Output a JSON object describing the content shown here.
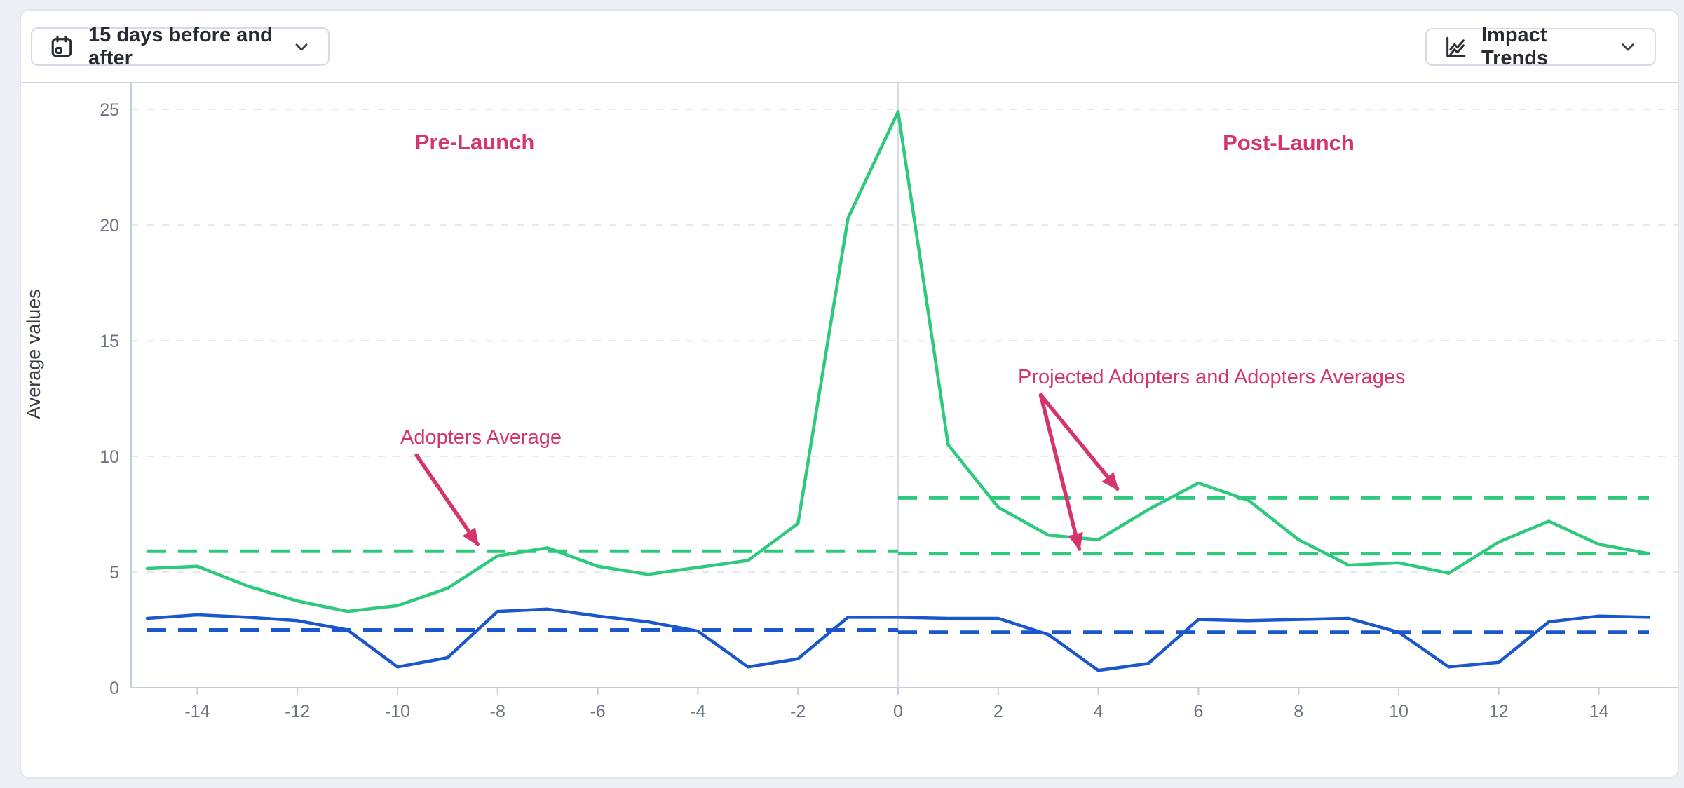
{
  "header": {
    "date_range_button": {
      "label": "15 days before and after"
    },
    "trends_button": {
      "label": "Impact Trends"
    }
  },
  "chart_data": {
    "type": "line",
    "title": "",
    "xlabel": "",
    "ylabel": "Average values",
    "xlim": [
      -15,
      15
    ],
    "ylim": [
      0,
      25
    ],
    "grid": true,
    "legend_position": "none",
    "x_ticks": [
      -14,
      -12,
      -10,
      -8,
      -6,
      -4,
      -2,
      0,
      2,
      4,
      6,
      8,
      10,
      12,
      14
    ],
    "y_ticks": [
      0,
      5,
      10,
      15,
      20,
      25
    ],
    "days": [
      -15,
      -14,
      -13,
      -12,
      -11,
      -10,
      -9,
      -8,
      -7,
      -6,
      -5,
      -4,
      -3,
      -2,
      -1,
      0,
      1,
      2,
      3,
      4,
      5,
      6,
      7,
      8,
      9,
      10,
      11,
      12,
      13,
      14,
      15
    ],
    "series": [
      {
        "name": "Adopters",
        "color": "#2dc97d",
        "values": [
          5.15,
          5.25,
          4.4,
          3.75,
          3.3,
          3.55,
          4.3,
          5.7,
          6.05,
          5.25,
          4.9,
          5.2,
          5.5,
          7.1,
          20.3,
          24.9,
          10.5,
          7.8,
          6.6,
          6.4,
          7.7,
          8.85,
          8.1,
          6.4,
          5.3,
          5.4,
          4.95,
          6.3,
          7.2,
          6.2,
          5.8
        ]
      },
      {
        "name": "Projected Adopters",
        "color": "#1a56cc",
        "values": [
          3.0,
          3.15,
          3.05,
          2.9,
          2.5,
          0.9,
          1.3,
          3.3,
          3.4,
          3.1,
          2.85,
          2.45,
          0.9,
          1.25,
          3.05,
          3.05,
          3.0,
          3.0,
          2.3,
          0.75,
          1.05,
          2.95,
          2.9,
          2.95,
          3.0,
          2.4,
          0.9,
          1.1,
          2.85,
          3.1,
          3.05
        ]
      }
    ],
    "average_lines": [
      {
        "name": "adopters-average-pre-launch",
        "value": 5.9,
        "from": -15,
        "to": 0,
        "color": "#2dc97d"
      },
      {
        "name": "averages-post-launch-upper",
        "value": 8.2,
        "from": 0,
        "to": 15,
        "color": "#2dc97d"
      },
      {
        "name": "averages-post-launch-lower",
        "value": 5.8,
        "from": 0,
        "to": 15,
        "color": "#2dc97d"
      },
      {
        "name": "projected-average-pre-launch",
        "value": 2.5,
        "from": -15,
        "to": 0,
        "color": "#1a56cc"
      },
      {
        "name": "projected-average-post-launch",
        "value": 2.4,
        "from": 0,
        "to": 15,
        "color": "#1a56cc"
      }
    ],
    "launch_divider_x": 0,
    "annotations": {
      "pre_launch": "Pre-Launch",
      "post_launch": "Post-Launch",
      "adopters_average": "Adopters Average",
      "projected_and_adopters_averages": "Projected Adopters and Adopters Averages"
    },
    "annotation_arrows": [
      {
        "name": "adopters-average-arrow",
        "from_day": -9.62,
        "from_value": 10.05,
        "to_day": -8.4,
        "to_value": 6.2
      },
      {
        "name": "averages-upper-arrow",
        "from_day": 2.85,
        "from_value": 12.65,
        "to_day": 4.38,
        "to_value": 8.6
      },
      {
        "name": "averages-lower-arrow",
        "from_day": 2.85,
        "from_value": 12.65,
        "to_day": 3.62,
        "to_value": 6.0
      }
    ]
  },
  "colors": {
    "annotation": "#d4356b",
    "grid": "#e4e8f0",
    "axis": "#c3cddd",
    "plot_border": "#e0e5ee",
    "tick_text": "#6a7480",
    "launch_divider": "#d5dce6",
    "header_divider": "#ccd5e3",
    "axis_title_text": "#3a3f46"
  }
}
